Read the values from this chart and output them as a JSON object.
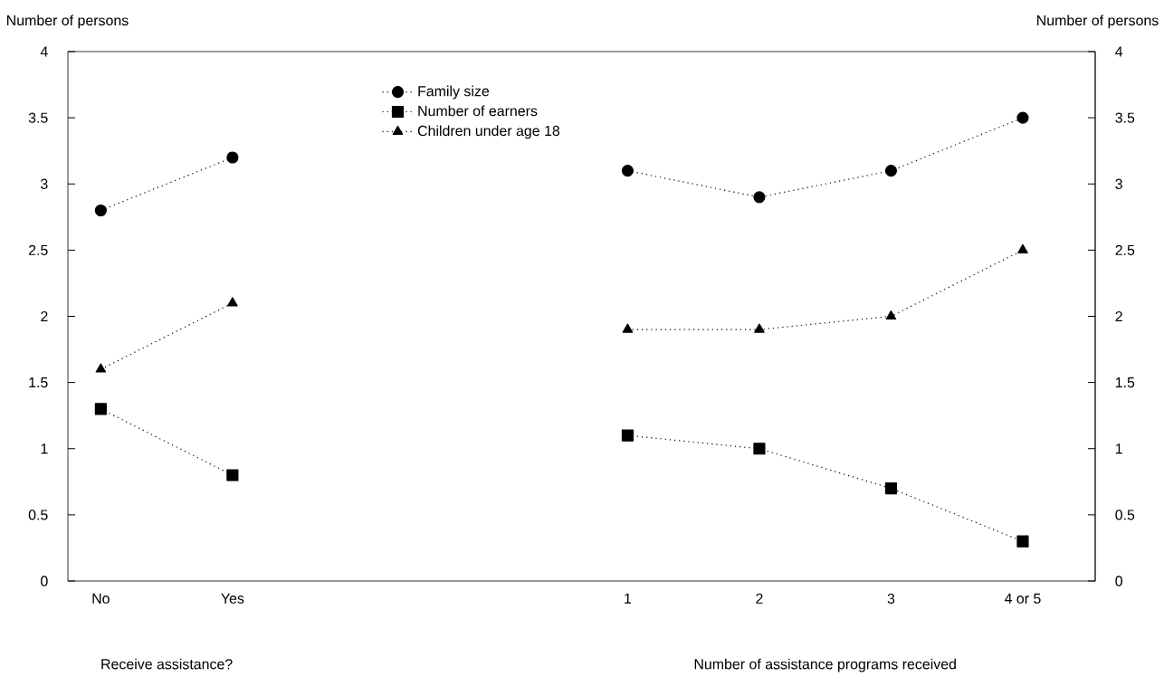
{
  "chart_data": {
    "type": "line",
    "categories": [
      "No",
      "Yes",
      null,
      null,
      "1",
      "2",
      "3",
      "4 or 5"
    ],
    "series": [
      {
        "name": "Family size",
        "color": "#000000",
        "marker": "circle",
        "values": [
          2.8,
          3.2,
          null,
          null,
          3.1,
          2.9,
          3.1,
          3.5
        ]
      },
      {
        "name": "Number of earners",
        "color": "#000000",
        "marker": "square",
        "values": [
          1.3,
          0.8,
          null,
          null,
          1.1,
          1.0,
          0.7,
          0.3
        ]
      },
      {
        "name": "Children under age 18",
        "color": "#000000",
        "marker": "triangle",
        "values": [
          1.6,
          2.1,
          null,
          null,
          1.9,
          1.9,
          2.0,
          2.5
        ]
      }
    ],
    "xlabel": "Receive assistance?",
    "annotations": [
      "Number of assistance programs received"
    ],
    "ylabel": "Number of persons",
    "y2label": "Number of persons",
    "ylim": [
      0,
      4
    ],
    "yticks": [
      0,
      0.5,
      1,
      1.5,
      2,
      2.5,
      3,
      3.5,
      4
    ],
    "y2lim": [
      0,
      4
    ],
    "y2ticks": [
      0,
      0.5,
      1,
      1.5,
      2,
      2.5,
      3,
      3.5,
      4
    ],
    "line_style": "dotted",
    "grid": false,
    "legend": "top left"
  }
}
